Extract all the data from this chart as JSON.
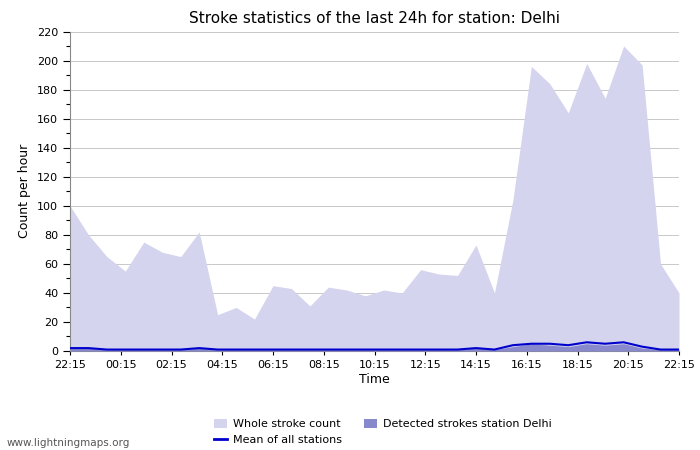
{
  "title": "Stroke statistics of the last 24h for station: Delhi",
  "xlabel": "Time",
  "ylabel": "Count per hour",
  "xlim_labels": [
    "22:15",
    "00:15",
    "02:15",
    "04:15",
    "06:15",
    "08:15",
    "10:15",
    "12:15",
    "14:15",
    "16:15",
    "18:15",
    "20:15",
    "22:15"
  ],
  "ylim": [
    0,
    220
  ],
  "yticks": [
    0,
    20,
    40,
    60,
    80,
    100,
    120,
    140,
    160,
    180,
    200,
    220
  ],
  "bg_color": "#ffffff",
  "grid_color": "#c8c8c8",
  "fill_whole_color": "#d4d4ee",
  "fill_detected_color": "#8888cc",
  "mean_line_color": "#0000cc",
  "watermark": "www.lightningmaps.org",
  "whole_stroke": [
    100,
    80,
    65,
    55,
    75,
    68,
    65,
    82,
    25,
    30,
    22,
    45,
    43,
    31,
    44,
    42,
    38,
    42,
    40,
    56,
    53,
    52,
    73,
    40,
    104,
    196,
    184,
    164,
    198,
    174,
    210,
    197,
    60,
    40
  ],
  "detected_stroke": [
    2,
    2,
    1,
    1,
    1,
    1,
    1,
    2,
    1,
    1,
    1,
    1,
    1,
    1,
    1,
    1,
    1,
    1,
    1,
    1,
    1,
    1,
    2,
    1,
    3,
    5,
    4,
    3,
    5,
    4,
    5,
    2,
    1,
    1
  ],
  "mean_line": [
    2,
    2,
    1,
    1,
    1,
    1,
    1,
    2,
    1,
    1,
    1,
    1,
    1,
    1,
    1,
    1,
    1,
    1,
    1,
    1,
    1,
    1,
    2,
    1,
    4,
    5,
    5,
    4,
    6,
    5,
    6,
    3,
    1,
    1
  ]
}
